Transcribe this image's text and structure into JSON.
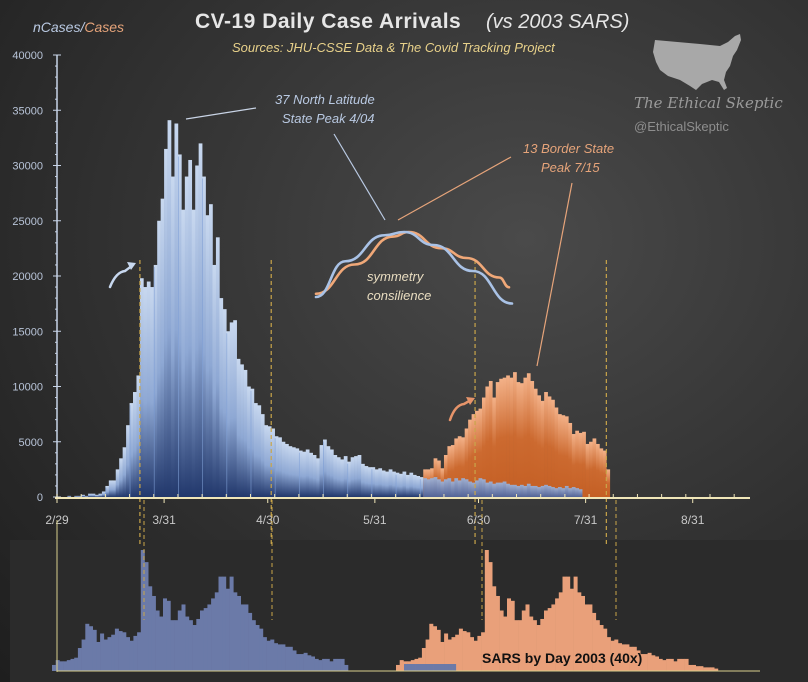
{
  "chart_data": {
    "type": "bar",
    "title": "CV-19  Daily  Case  Arrivals",
    "title_suffix": "(vs 2003 SARS)",
    "subtitle": "Sources: JHU-CSSE Data & The Covid Tracking Project",
    "ylabel_part1": "nCases",
    "ylabel_sep": "/",
    "ylabel_part2": "Cases",
    "ylim": [
      0,
      40000
    ],
    "y_ticks": [
      "0",
      "5000",
      "10000",
      "15000",
      "20000",
      "25000",
      "30000",
      "35000",
      "40000"
    ],
    "x_start_date": "2/29",
    "x_days_range": [
      0,
      196
    ],
    "x_ticks": [
      {
        "label": "2/29",
        "day": 0
      },
      {
        "label": "3/31",
        "day": 31
      },
      {
        "label": "4/30",
        "day": 61
      },
      {
        "label": "5/31",
        "day": 92
      },
      {
        "label": "6/30",
        "day": 122
      },
      {
        "label": "7/31",
        "day": 153
      },
      {
        "label": "8/31",
        "day": 184
      }
    ],
    "grid": false,
    "series": [
      {
        "name": "37 North Latitude States",
        "color": "#a9c2e6",
        "color_dark": "#243a6e",
        "start_day": 0,
        "values": [
          0,
          0,
          0,
          100,
          0,
          100,
          100,
          200,
          100,
          300,
          300,
          200,
          300,
          500,
          1000,
          1500,
          1500,
          2500,
          3500,
          4500,
          6500,
          8500,
          9500,
          11000,
          19800,
          19000,
          19500,
          19000,
          21000,
          25000,
          27000,
          31500,
          34100,
          29000,
          33800,
          31000,
          26000,
          29000,
          30500,
          26000,
          30000,
          32000,
          29000,
          25500,
          26500,
          21000,
          23500,
          18000,
          17000,
          15000,
          15800,
          16000,
          12500,
          12000,
          11500,
          10000,
          9800,
          8500,
          8300,
          7500,
          6500,
          6400,
          6200,
          5500,
          5400,
          5000,
          4800,
          4600,
          4500,
          4400,
          4200,
          4100,
          4300,
          4000,
          3800,
          3500,
          4700,
          5200,
          4600,
          4300,
          3800,
          3600,
          3400,
          3700,
          3200,
          3600,
          3700,
          3800,
          3000,
          2800,
          2700,
          2700,
          2500,
          2600,
          2400,
          2300,
          2500,
          2300,
          2200,
          2100,
          2300,
          2000,
          2200,
          2000,
          1900,
          1800,
          1700,
          1600,
          1700,
          1800,
          1600,
          1400,
          1600,
          1700,
          1400,
          1700,
          1500,
          1700,
          1600,
          1400,
          1300,
          1500,
          1700,
          1600,
          1300,
          1400,
          1200,
          1300,
          1300,
          1400,
          1200,
          1100,
          1100,
          1000,
          1100,
          1000,
          1200,
          1000,
          1000,
          900,
          1000,
          1100,
          1000,
          900,
          800,
          900,
          800,
          1000,
          800,
          900,
          800,
          700
        ]
      },
      {
        "name": "13 Border States",
        "color": "#f0a878",
        "color_dark": "#c8642a",
        "start_day": 106,
        "values": [
          2500,
          2500,
          2600,
          3500,
          3300,
          2600,
          3800,
          4600,
          4700,
          5300,
          5500,
          5400,
          6200,
          7000,
          7500,
          7800,
          8000,
          9000,
          10000,
          10500,
          9000,
          10400,
          10700,
          10800,
          11000,
          10800,
          11300,
          10400,
          10300,
          10800,
          11200,
          10500,
          9800,
          9200,
          8700,
          9500,
          9100,
          8800,
          8100,
          7500,
          7400,
          7300,
          6700,
          5700,
          6000,
          5800,
          5900,
          4800,
          5000,
          5300,
          4800,
          4400,
          4200,
          2500
        ]
      }
    ],
    "vlines": [
      {
        "day": 24,
        "color": "#c9a54a"
      },
      {
        "day": 62,
        "color": "#c9a54a"
      },
      {
        "day": 121,
        "color": "#c9a54a"
      },
      {
        "day": 159,
        "color": "#c9a54a"
      }
    ],
    "annotations": {
      "north_label_line1": "37 North Latitude",
      "north_label_line2": "State Peak 4/04",
      "border_label_line1": "13 Border State",
      "border_label_line2": "Peak 7/15",
      "symmetry_line1": "symmetry",
      "symmetry_line2": "consilience"
    },
    "inset_curves": {
      "blue_shape": [
        [
          0,
          0
        ],
        [
          0.15,
          0.55
        ],
        [
          0.35,
          0.95
        ],
        [
          0.45,
          1.0
        ],
        [
          0.6,
          0.8
        ],
        [
          0.8,
          0.4
        ],
        [
          1.0,
          -0.1
        ]
      ],
      "orange_shape": [
        [
          0,
          0.05
        ],
        [
          0.2,
          0.5
        ],
        [
          0.4,
          0.93
        ],
        [
          0.48,
          1.0
        ],
        [
          0.65,
          0.75
        ],
        [
          0.78,
          0.6
        ],
        [
          0.95,
          0.3
        ],
        [
          1.0,
          0.15
        ]
      ]
    },
    "sars_panel": {
      "label": "SARS by Day 2003 (40x)",
      "scale_note": "40x",
      "color_blue": "#6b7aa8",
      "color_orange": "#e9a07a",
      "values_blue": [
        0.05,
        0.09,
        0.08,
        0.08,
        0.09,
        0.1,
        0.11,
        0.19,
        0.26,
        0.39,
        0.37,
        0.34,
        0.24,
        0.31,
        0.26,
        0.28,
        0.3,
        0.35,
        0.33,
        0.32,
        0.28,
        0.25,
        0.29,
        0.32,
        1.0,
        0.9,
        0.7,
        0.62,
        0.5,
        0.45,
        0.6,
        0.58,
        0.42,
        0.42,
        0.5,
        0.55,
        0.45,
        0.42,
        0.38,
        0.43,
        0.5,
        0.52,
        0.55,
        0.6,
        0.65,
        0.78,
        0.78,
        0.68,
        0.78,
        0.65,
        0.62,
        0.55,
        0.55,
        0.48,
        0.42,
        0.38,
        0.35,
        0.28,
        0.25,
        0.26,
        0.23,
        0.22,
        0.22,
        0.2,
        0.2,
        0.17,
        0.14,
        0.14,
        0.15,
        0.13,
        0.12,
        0.1,
        0.09,
        0.1,
        0.1,
        0.08,
        0.1,
        0.1,
        0.1,
        0.05
      ],
      "values_orange": [
        0.05,
        0.09,
        0.08,
        0.08,
        0.09,
        0.1,
        0.11,
        0.19,
        0.26,
        0.39,
        0.37,
        0.34,
        0.24,
        0.31,
        0.26,
        0.28,
        0.3,
        0.35,
        0.33,
        0.32,
        0.28,
        0.25,
        0.29,
        0.32,
        1.0,
        0.9,
        0.7,
        0.62,
        0.5,
        0.45,
        0.6,
        0.58,
        0.42,
        0.42,
        0.5,
        0.55,
        0.45,
        0.42,
        0.38,
        0.43,
        0.5,
        0.52,
        0.55,
        0.6,
        0.65,
        0.78,
        0.78,
        0.68,
        0.78,
        0.65,
        0.62,
        0.55,
        0.55,
        0.48,
        0.42,
        0.38,
        0.35,
        0.28,
        0.25,
        0.26,
        0.23,
        0.22,
        0.22,
        0.2,
        0.2,
        0.17,
        0.14,
        0.14,
        0.15,
        0.13,
        0.12,
        0.1,
        0.09,
        0.1,
        0.1,
        0.08,
        0.1,
        0.1,
        0.1,
        0.05,
        0.05,
        0.04,
        0.04,
        0.03,
        0.03,
        0.03,
        0.02
      ]
    }
  },
  "branding": {
    "name": "The Ethical Skeptic",
    "handle": "@EthicalSkeptic",
    "logo_icon": "usa-map-icon"
  }
}
